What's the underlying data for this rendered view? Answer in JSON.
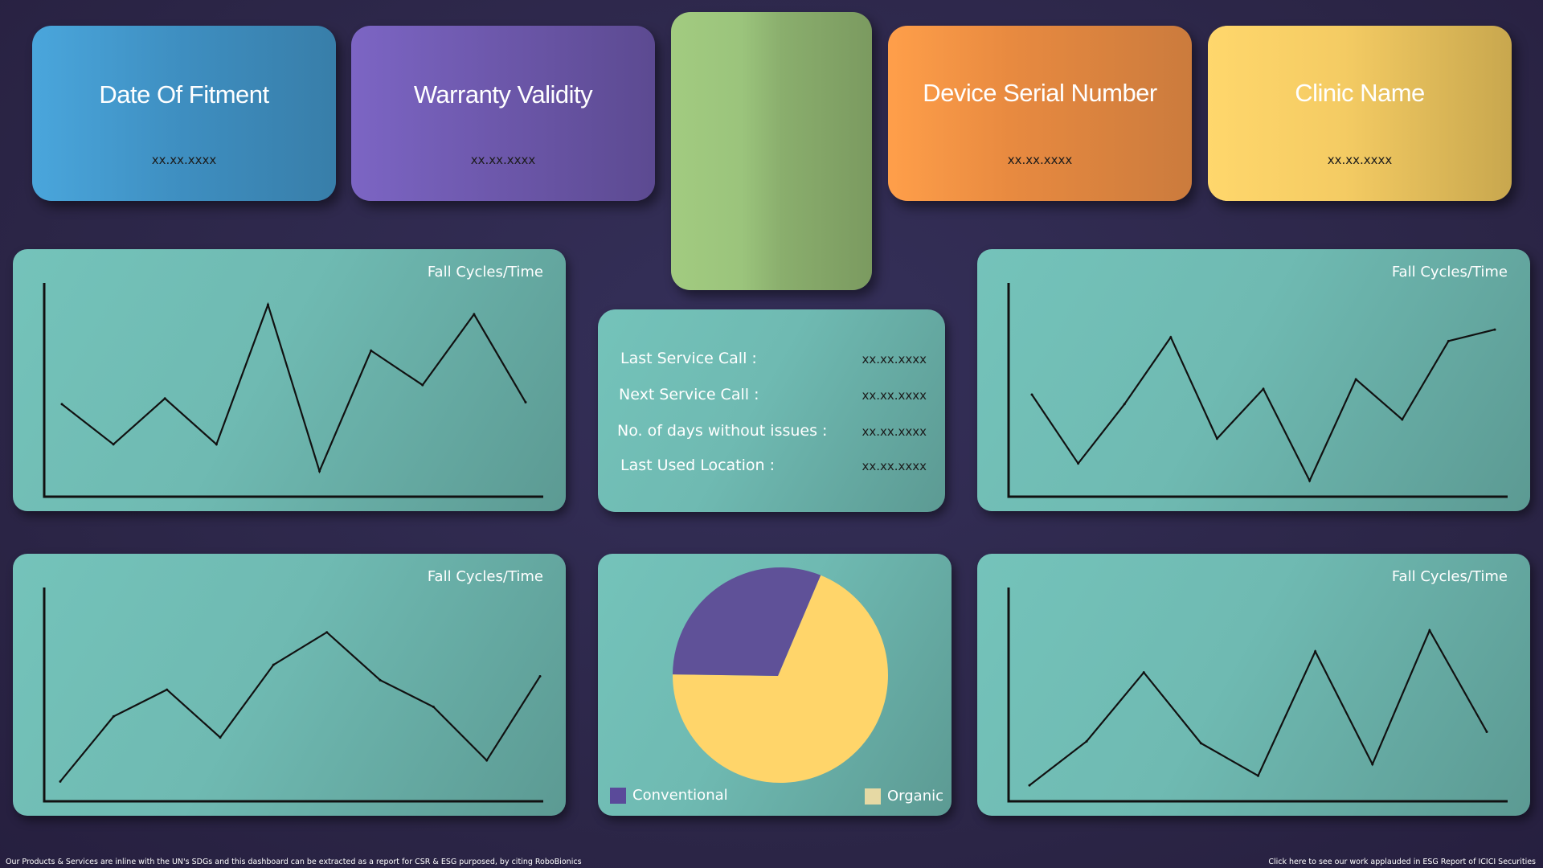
{
  "cards": {
    "date": {
      "title": "Date Of Fitment",
      "value": "xx.xx.xxxx"
    },
    "warranty": {
      "title": "Warranty Validity",
      "value": "xx.xx.xxxx"
    },
    "serial": {
      "title": "Device Serial Number",
      "value": "xx.xx.xxxx"
    },
    "clinic": {
      "title": "Clinic Name",
      "value": "xx.xx.xxxx"
    }
  },
  "info": {
    "rows": [
      {
        "label": "Last Service Call :",
        "value": "xx.xx.xxxx"
      },
      {
        "label": "Next Service Call :",
        "value": "xx.xx.xxxx"
      },
      {
        "label": "No. of days without issues :",
        "value": "xx.xx.xxxx"
      },
      {
        "label": "Last Used Location :",
        "value": "xx.xx.xxxx"
      }
    ]
  },
  "charts": [
    {
      "title": "Fall Cycles/Time"
    },
    {
      "title": "Fall Cycles/Time"
    },
    {
      "title": "Fall Cycles/Time"
    },
    {
      "title": "Fall Cycles/Time"
    }
  ],
  "chart_data": [
    {
      "type": "line",
      "title": "Fall Cycles/Time",
      "x": [
        1,
        2,
        3,
        4,
        5,
        6,
        7,
        8,
        9,
        10,
        11,
        12
      ],
      "values": [
        45,
        24,
        48,
        24,
        97,
        10,
        73,
        55,
        92,
        46,
        null,
        null
      ]
    },
    {
      "type": "line",
      "title": "Fall Cycles/Time",
      "x": [
        1,
        2,
        3,
        4,
        5,
        6,
        7,
        8,
        9,
        10,
        11
      ],
      "values": [
        50,
        14,
        45,
        80,
        27,
        53,
        5,
        58,
        37,
        78,
        84
      ]
    },
    {
      "type": "line",
      "title": "Fall Cycles/Time",
      "x": [
        1,
        2,
        3,
        4,
        5,
        6,
        7,
        8,
        9,
        10,
        11
      ],
      "values": [
        7,
        41,
        55,
        30,
        68,
        85,
        60,
        46,
        18,
        62,
        null
      ]
    },
    {
      "type": "line",
      "title": "Fall Cycles/Time",
      "x": [
        1,
        2,
        3,
        4,
        5,
        6,
        7,
        8,
        9,
        10
      ],
      "values": [
        5,
        28,
        64,
        27,
        10,
        75,
        16,
        86,
        33,
        null
      ]
    },
    {
      "type": "pie",
      "labels": [
        "Conventional",
        "Organic"
      ],
      "values": [
        31,
        69
      ],
      "colors": [
        "#5f5198",
        "#ffd56a"
      ]
    }
  ],
  "legend": {
    "conventional": "Conventional",
    "organic": "Organic"
  },
  "footer": {
    "left": "Our Products & Services are inline with the UN's SDGs and this dashboard can be extracted as a report for CSR & ESG purposed, by citing RoboBionics",
    "right": "Click here to see our work applauded in ESG Report of ICICI Securities"
  }
}
